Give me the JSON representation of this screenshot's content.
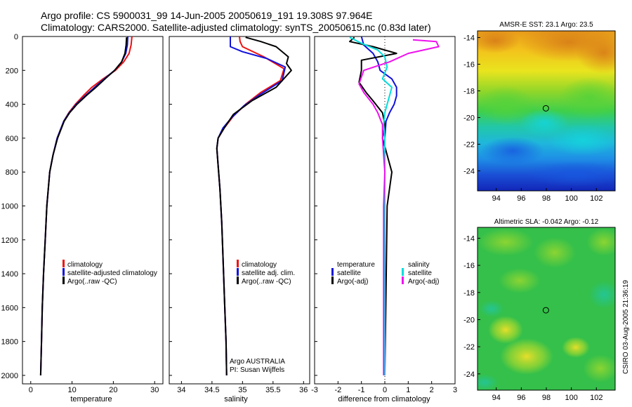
{
  "header": {
    "line1": "Argo profile: CS 5900031_99 14-Jun-2005 20050619_191 19.308S 97.964E",
    "line2": "Climatology: CARS2000. Satellite-adjusted climatology: synTS_20050615.nc (0.83d later)"
  },
  "side_label": "CSIRO 03-Aug-2005 21:36:19",
  "colors": {
    "climatology": "#ee1111",
    "satellite": "#1111dd",
    "argo": "#000000",
    "sal_diff_sat": "#00dddd",
    "sal_diff_argo": "#ee11ee"
  },
  "chart_data": [
    {
      "type": "line",
      "id": "temperature",
      "xlabel": "temperature",
      "xlim": [
        -2,
        32
      ],
      "ylim": [
        0,
        2050
      ],
      "xticks": [
        0,
        10,
        20,
        30
      ],
      "yticks": [
        0,
        200,
        400,
        600,
        800,
        1000,
        1200,
        1400,
        1600,
        1800,
        2000
      ],
      "series": [
        {
          "name": "climatology",
          "color_key": "climatology",
          "x": [
            24.5,
            24.3,
            23.8,
            22.5,
            20.5,
            17.5,
            14.8,
            12.7,
            10.8,
            9.2,
            8.0,
            6.4,
            5.4,
            4.6,
            3.9,
            3.5,
            3.1,
            2.8,
            2.6,
            2.4
          ],
          "y": [
            0,
            50,
            100,
            150,
            200,
            250,
            300,
            350,
            400,
            450,
            500,
            600,
            700,
            800,
            1000,
            1200,
            1400,
            1600,
            1800,
            2000
          ]
        },
        {
          "name": "satellite-adjusted climatology",
          "color_key": "satellite",
          "x": [
            23.5,
            23.4,
            23.0,
            22.0,
            20.3,
            17.8,
            15.5,
            13.2,
            11.0,
            9.3,
            8.0,
            6.4,
            5.4,
            4.6,
            3.9,
            3.5,
            3.1,
            2.8,
            2.6,
            2.4
          ],
          "y": [
            0,
            50,
            100,
            150,
            200,
            250,
            300,
            350,
            400,
            450,
            500,
            600,
            700,
            800,
            1000,
            1200,
            1400,
            1600,
            1800,
            2000
          ]
        },
        {
          "name": "Argo(..raw -QC)",
          "color_key": "argo",
          "x": [
            23.2,
            23.1,
            22.8,
            22.0,
            20.3,
            18.0,
            15.8,
            13.4,
            11.2,
            9.4,
            8.1,
            6.5,
            5.4,
            4.6,
            3.9,
            3.5,
            3.1,
            2.8,
            2.6,
            2.4
          ],
          "y": [
            5,
            50,
            100,
            150,
            200,
            250,
            300,
            350,
            400,
            450,
            500,
            600,
            700,
            800,
            1000,
            1200,
            1400,
            1600,
            1800,
            2000
          ]
        }
      ],
      "legend": [
        "climatology",
        "satellite-adjusted climatology",
        "Argo(..raw -QC)"
      ]
    },
    {
      "type": "line",
      "id": "salinity",
      "xlabel": "salinity",
      "xlim": [
        33.8,
        36.1
      ],
      "ylim": [
        0,
        2050
      ],
      "xticks": [
        34,
        34.5,
        35,
        35.5,
        36
      ],
      "series": [
        {
          "name": "climatology",
          "color_key": "climatology",
          "x": [
            34.95,
            34.96,
            35.0,
            35.35,
            35.68,
            35.62,
            35.3,
            35.05,
            34.85,
            34.7,
            34.6,
            34.58,
            34.6,
            34.63,
            34.66,
            34.69,
            34.71,
            34.73,
            34.74
          ],
          "y": [
            0,
            30,
            60,
            120,
            190,
            260,
            330,
            400,
            470,
            540,
            600,
            660,
            760,
            900,
            1100,
            1400,
            1600,
            1800,
            2000
          ]
        },
        {
          "name": "satellite adj. clim.",
          "color_key": "satellite",
          "x": [
            34.8,
            34.8,
            35.0,
            35.4,
            35.7,
            35.65,
            35.3,
            35.02,
            34.82,
            34.68,
            34.6,
            34.58,
            34.6,
            34.63,
            34.66,
            34.69,
            34.71,
            34.73,
            34.74
          ],
          "y": [
            0,
            60,
            90,
            130,
            180,
            260,
            340,
            410,
            480,
            540,
            600,
            660,
            760,
            900,
            1100,
            1400,
            1600,
            1800,
            2000
          ]
        },
        {
          "name": "Argo(..raw -QC)",
          "color_key": "argo",
          "x": [
            35.05,
            35.3,
            35.55,
            35.75,
            35.72,
            35.8,
            35.55,
            35.15,
            34.85,
            34.7,
            34.6,
            34.58,
            34.6,
            34.63,
            34.66,
            34.69,
            34.71,
            34.73,
            34.74
          ],
          "y": [
            5,
            30,
            60,
            120,
            160,
            200,
            300,
            380,
            460,
            540,
            600,
            660,
            760,
            900,
            1100,
            1400,
            1600,
            1800,
            2000
          ]
        }
      ],
      "legend": [
        "climatology",
        "satellite adj. clim.",
        "Argo(..raw -QC)"
      ],
      "annotation": [
        "Argo AUSTRALIA",
        "PI: Susan Wijffels"
      ]
    },
    {
      "type": "line",
      "id": "difference",
      "xlabel": "difference from climatology",
      "xlim": [
        -3,
        3
      ],
      "ylim": [
        0,
        2050
      ],
      "xticks": [
        -3,
        -2,
        -1,
        0,
        1,
        2,
        3
      ],
      "series": [
        {
          "name": "temperature satellite",
          "color_key": "satellite",
          "x": [
            -1.0,
            -0.9,
            -0.5,
            -0.3,
            -0.2,
            0.3,
            0.5,
            0.5,
            0.4,
            0.2,
            0.05,
            0.0,
            0.0,
            0.0,
            0.0,
            0.0
          ],
          "y": [
            0,
            50,
            100,
            150,
            200,
            250,
            300,
            350,
            400,
            450,
            500,
            600,
            800,
            1000,
            1500,
            2000
          ]
        },
        {
          "name": "temperature Argo(-adj)",
          "color_key": "argo",
          "x": [
            -1.3,
            -1.5,
            -0.5,
            0.5,
            -1.0,
            -1.0,
            -1.1,
            -0.8,
            -0.5,
            -0.1,
            0.0,
            -0.1,
            0.3,
            0.1,
            0.05,
            0.0
          ],
          "y": [
            5,
            30,
            60,
            100,
            140,
            200,
            270,
            330,
            380,
            450,
            520,
            600,
            800,
            1000,
            1500,
            2000
          ]
        },
        {
          "name": "salinity satellite",
          "color_key": "sal_diff_sat",
          "x": [
            -1.5,
            -1.0,
            -0.3,
            0.0,
            0.1,
            -0.1,
            0.3,
            0.2,
            0.1,
            0.0,
            -0.05,
            0.0,
            0.0,
            0.0,
            0.0,
            0.0
          ],
          "y": [
            5,
            40,
            80,
            120,
            180,
            250,
            300,
            350,
            400,
            450,
            520,
            600,
            800,
            1000,
            1500,
            2000
          ]
        },
        {
          "name": "salinity Argo(-adj)",
          "color_key": "sal_diff_argo",
          "x": [
            1.2,
            2.2,
            2.3,
            1.0,
            0.2,
            -0.9,
            -1.1,
            -0.9,
            -0.5,
            -0.3,
            -0.1,
            -0.1,
            0.0,
            -0.05,
            -0.05,
            -0.05
          ],
          "y": [
            20,
            30,
            60,
            100,
            150,
            200,
            280,
            330,
            400,
            450,
            520,
            600,
            800,
            1000,
            1500,
            2000
          ]
        }
      ],
      "legend_left": {
        "title": "temperature",
        "items": [
          "satellite",
          "Argo(-adj)"
        ]
      },
      "legend_right": {
        "title": "salinity",
        "items": [
          "satellite",
          "Argo(-adj)"
        ]
      }
    },
    {
      "type": "heatmap",
      "id": "sst_map",
      "title": "AMSR-E SST: 23.1  Argo: 23.5",
      "xlim": [
        92.5,
        103.5
      ],
      "ylim": [
        -25.5,
        -13.5
      ],
      "xticks": [
        94,
        96,
        98,
        100,
        102
      ],
      "yticks": [
        -14,
        -16,
        -18,
        -20,
        -22,
        -24
      ],
      "marker": {
        "x": 97.964,
        "y": -19.308
      }
    },
    {
      "type": "heatmap",
      "id": "sla_map",
      "title": "Altimetric SLA: -0.042  Argo: -0.12",
      "xlim": [
        92.5,
        103.5
      ],
      "ylim": [
        -25.2,
        -13.2
      ],
      "xticks": [
        94,
        96,
        98,
        100,
        102
      ],
      "yticks": [
        -14,
        -16,
        -18,
        -20,
        -22,
        -24
      ],
      "marker": {
        "x": 97.964,
        "y": -19.308
      }
    }
  ]
}
